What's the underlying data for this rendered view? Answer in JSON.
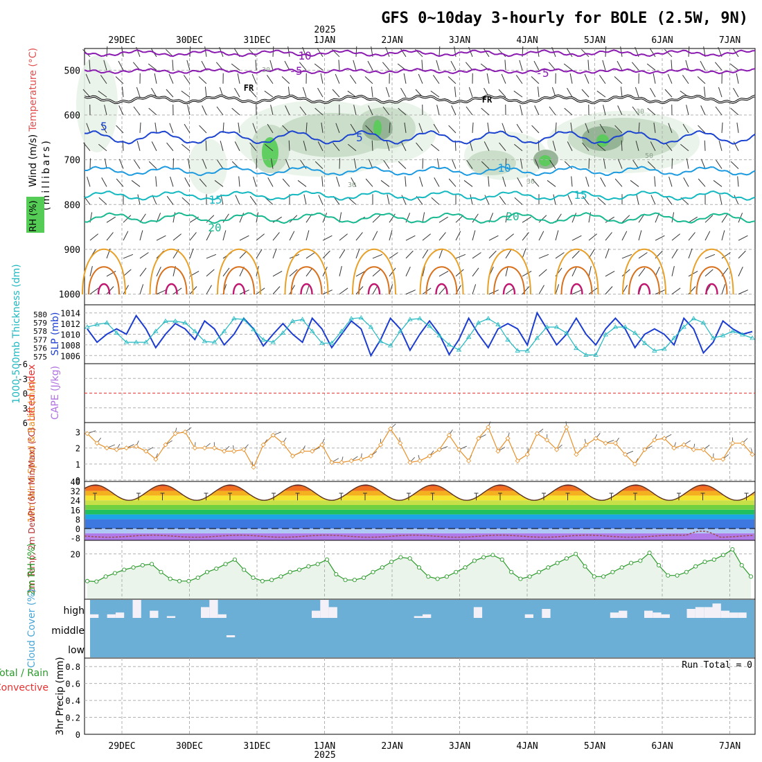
{
  "title": "GFS 0~10day 3-hourly for BOLE (2.5W, 9N)",
  "year_label": "2025",
  "dates": [
    "29DEC",
    "30DEC",
    "31DEC",
    "1JAN",
    "2JAN",
    "3JAN",
    "4JAN",
    "5JAN",
    "6JAN",
    "7JAN"
  ],
  "colors": {
    "rh_light": "#e8f3e8",
    "rh_mid": "#c7dcc7",
    "rh_dark": "#8fae8f",
    "rh_green": "#55cc55",
    "temp_purple": "#8a1ab0",
    "temp_blue": "#1c44d0",
    "temp_lightblue": "#1c9ae0",
    "temp_cyan": "#14b8c0",
    "temp_teal": "#18b890",
    "temp_orange": "#e8a028",
    "temp_darkorange": "#d8701c",
    "temp_magenta": "#c01870",
    "slp": "#1c3cd0",
    "thickness": "#20b8c0",
    "wind10": "#e89028",
    "rh2m": "#2a9a2a",
    "cloud": "#6baed6",
    "lifted": "#e83030"
  },
  "chart_data": [
    {
      "type": "contour",
      "title": "Wind (m/s), Temperature (°C), RH (%)",
      "ylabel": "(millibars)",
      "yticks": [
        "500",
        "600",
        "700",
        "800",
        "900",
        "1000"
      ],
      "ylim": [
        450,
        1000
      ],
      "legend": {
        "wind": "Wind (m/s)",
        "temperature": "Temperature (°C)",
        "rh": "RH (%)"
      },
      "freezing_label": "FR",
      "isotherm_labels": [
        "10",
        "-5",
        "-5",
        "5",
        "5",
        "10",
        "15",
        "15",
        "20",
        "20"
      ],
      "rh_labels": [
        "30",
        "30",
        "50",
        "30",
        "30"
      ],
      "isotherms": [
        {
          "temp": -10,
          "pressure": 462,
          "color": "temp_purple"
        },
        {
          "temp": -5,
          "pressure": 502,
          "color": "temp_purple"
        },
        {
          "temp": 0,
          "pressure": 565,
          "color": "black"
        },
        {
          "temp": 5,
          "pressure": 650,
          "color": "temp_blue"
        },
        {
          "temp": 10,
          "pressure": 725,
          "color": "temp_lightblue"
        },
        {
          "temp": 15,
          "pressure": 780,
          "color": "temp_cyan"
        },
        {
          "temp": 20,
          "pressure": 830,
          "color": "temp_teal"
        }
      ]
    },
    {
      "type": "line",
      "title": "SLP (mb), 1000-500mb Thickness (dm)",
      "ylabel_left": "1000-500mb Thickness (dm)",
      "ylabel_right": "SLP (mb)",
      "left_ticks": [
        "580",
        "579",
        "578",
        "577",
        "576",
        "575"
      ],
      "right_ticks": [
        "1014",
        "1012",
        "1010",
        "1008",
        "1006"
      ],
      "slp_ylim": [
        1005,
        1015
      ],
      "thickness_ylim": [
        574.5,
        580.8
      ],
      "series": [
        {
          "name": "SLP",
          "values": [
            1011,
            1008.5,
            1010,
            1011,
            1010,
            1013.5,
            1011,
            1007.5,
            1010,
            1012,
            1011,
            1009,
            1012.5,
            1011,
            1008,
            1010,
            1013,
            1011,
            1007.8,
            1010,
            1012,
            1010,
            1008.5,
            1013,
            1011,
            1007.5,
            1010,
            1012.5,
            1011,
            1006,
            1009,
            1013,
            1011,
            1007,
            1010,
            1012.5,
            1010,
            1006.2,
            1009,
            1013,
            1010,
            1007.5,
            1011,
            1012,
            1011,
            1008,
            1014,
            1011,
            1008,
            1010,
            1013,
            1010,
            1008,
            1011,
            1013,
            1011,
            1007.5,
            1010,
            1011,
            1010,
            1008,
            1013,
            1011,
            1006.5,
            1008.5,
            1012.5,
            1011,
            1010,
            1010.5
          ]
        },
        {
          "name": "Thickness",
          "values": [
            578.5,
            578.8,
            579.0,
            577.8,
            576.7,
            576.7,
            576.7,
            578.0,
            579.2,
            579.2,
            579.0,
            578.0,
            576.8,
            576.7,
            578.0,
            579.5,
            579.4,
            578.2,
            577.0,
            576.7,
            577.8,
            579.2,
            579.4,
            578.0,
            576.6,
            576.6,
            578.0,
            579.5,
            579.6,
            578.5,
            576.8,
            576.3,
            578.0,
            579.4,
            579.5,
            578.6,
            577.5,
            576.4,
            575.8,
            577.3,
            579.0,
            579.5,
            578.8,
            577.0,
            575.7,
            575.7,
            577.2,
            578.5,
            578.5,
            577.8,
            576.0,
            575.2,
            575.2,
            577.6,
            578.5,
            578.5,
            577.8,
            576.6,
            575.7,
            575.9,
            577.2,
            578.5,
            579.5,
            579.0,
            577.2,
            577.5,
            578.0,
            577.6,
            577.2
          ]
        }
      ]
    },
    {
      "type": "line",
      "title": "Lifted Index, CAPE (J/kg)",
      "ylabel_left": "Lifted Index",
      "ylabel_right": "CAPE (J/kg)",
      "yticks": [
        "-6",
        "-3",
        "0",
        "3",
        "6"
      ],
      "ylim": [
        -6,
        6
      ],
      "series": []
    },
    {
      "type": "line",
      "title": "10m Wind Speed & Barbs",
      "ylabel": "10m Wind Speed & Barbs (m/s)",
      "yticks": [
        "3",
        "2",
        "1",
        "0"
      ],
      "ylim": [
        0,
        3.5
      ],
      "series": [
        {
          "name": "Speed",
          "values": [
            2.9,
            2.3,
            2.0,
            1.9,
            2.0,
            2.1,
            1.8,
            1.3,
            2.2,
            2.9,
            3.0,
            2.0,
            2.0,
            2.0,
            1.8,
            1.8,
            1.9,
            0.8,
            2.2,
            2.8,
            2.3,
            1.5,
            1.8,
            1.8,
            2.2,
            1.1,
            1.1,
            1.2,
            1.3,
            1.5,
            2.2,
            3.2,
            2.3,
            1.1,
            1.2,
            1.5,
            1.9,
            2.8,
            1.9,
            1.2,
            2.6,
            3.3,
            1.8,
            2.6,
            1.2,
            1.6,
            2.9,
            2.5,
            1.9,
            3.3,
            1.6,
            2.2,
            2.6,
            2.3,
            2.3,
            1.6,
            1.0,
            1.9,
            2.5,
            2.6,
            2.0,
            2.2,
            1.9,
            1.9,
            1.3,
            1.3,
            2.3,
            2.3,
            1.6
          ]
        }
      ]
    },
    {
      "type": "area",
      "title": "2m Temp, 2m DewPt (6hr Min/Max)",
      "ylabel": "2m Temp, 2m DewPt (6hr Min/Max) (°C)",
      "yticks": [
        "40",
        "32",
        "24",
        "16",
        "8",
        "0",
        "-8"
      ],
      "ylim": [
        -10,
        40
      ],
      "series": [
        {
          "name": "2m Temp",
          "day_min": 24,
          "day_max": 37
        },
        {
          "name": "2m DewPt",
          "mean": -6.5
        }
      ]
    },
    {
      "type": "line",
      "title": "2m RH",
      "ylabel": "2m RH (%)",
      "yticks": [
        "20"
      ],
      "ylim": [
        0,
        26
      ],
      "series": [
        {
          "name": "RH",
          "values": [
            8,
            7.8,
            10,
            11.5,
            13,
            14,
            15,
            15.5,
            12,
            9,
            8,
            8,
            9.5,
            12,
            13.5,
            15.5,
            17.5,
            13,
            9.5,
            8,
            8.5,
            10,
            12,
            13,
            14.5,
            15.5,
            17.5,
            11,
            8.5,
            8.5,
            9.5,
            12,
            14,
            16.5,
            18.5,
            18,
            14,
            10,
            9,
            10,
            12,
            14,
            17,
            18.5,
            19.5,
            17.5,
            12,
            9,
            10,
            12,
            14,
            16,
            18,
            20,
            14.5,
            10,
            10,
            12,
            14,
            16,
            17,
            20.5,
            15,
            10.5,
            10.5,
            12,
            14.5,
            16.5,
            17.5,
            19.5,
            22,
            15,
            10
          ]
        }
      ]
    },
    {
      "type": "bar",
      "title": "Cloud Cover (%)",
      "ylabel": "Cloud Cover (%)",
      "yticks": [
        "high",
        "middle",
        "low"
      ],
      "ylim": [
        0,
        100
      ],
      "series": [
        {
          "name": "high",
          "values": [
            20,
            0,
            20,
            30,
            0,
            100,
            0,
            40,
            0,
            10,
            0,
            0,
            0,
            60,
            100,
            20,
            0,
            0,
            0,
            0,
            0,
            0,
            0,
            0,
            0,
            0,
            40,
            100,
            60,
            0,
            0,
            0,
            0,
            0,
            0,
            0,
            0,
            0,
            10,
            20,
            0,
            0,
            0,
            0,
            0,
            60,
            0,
            0,
            0,
            0,
            0,
            20,
            0,
            50,
            0,
            0,
            0,
            0,
            0,
            0,
            0,
            30,
            40,
            0,
            0,
            40,
            30,
            20,
            0,
            0,
            50,
            60,
            60,
            80,
            40,
            30,
            30,
            0
          ]
        },
        {
          "name": "middle",
          "values": [
            0,
            0,
            0,
            0,
            0,
            0,
            0,
            0,
            0,
            0,
            0,
            0,
            0,
            0,
            0,
            0,
            5,
            0,
            0,
            0,
            0,
            0,
            0,
            0,
            0,
            0,
            0,
            0,
            0,
            0,
            0,
            0,
            0,
            0,
            0,
            0,
            0,
            0,
            0,
            0,
            0,
            0,
            0,
            0,
            0,
            0,
            0,
            0,
            0,
            0,
            0,
            0,
            0,
            0,
            0,
            0,
            0,
            0,
            0,
            0,
            0,
            0,
            0,
            0,
            0,
            0,
            0,
            0,
            0,
            0,
            0,
            0,
            0,
            0,
            0,
            0,
            0,
            0
          ]
        },
        {
          "name": "low",
          "values": []
        }
      ]
    },
    {
      "type": "bar",
      "title": "3hr Precip (mm)",
      "ylabel": "3hr Precip (mm)",
      "legend": [
        "Total / Rain",
        "Convective"
      ],
      "yticks": [
        "0.8",
        "0.6",
        "0.4",
        "0.2",
        "0"
      ],
      "ylim": [
        0,
        0.9
      ],
      "run_total_label": "Run Total = 0",
      "values": []
    }
  ]
}
